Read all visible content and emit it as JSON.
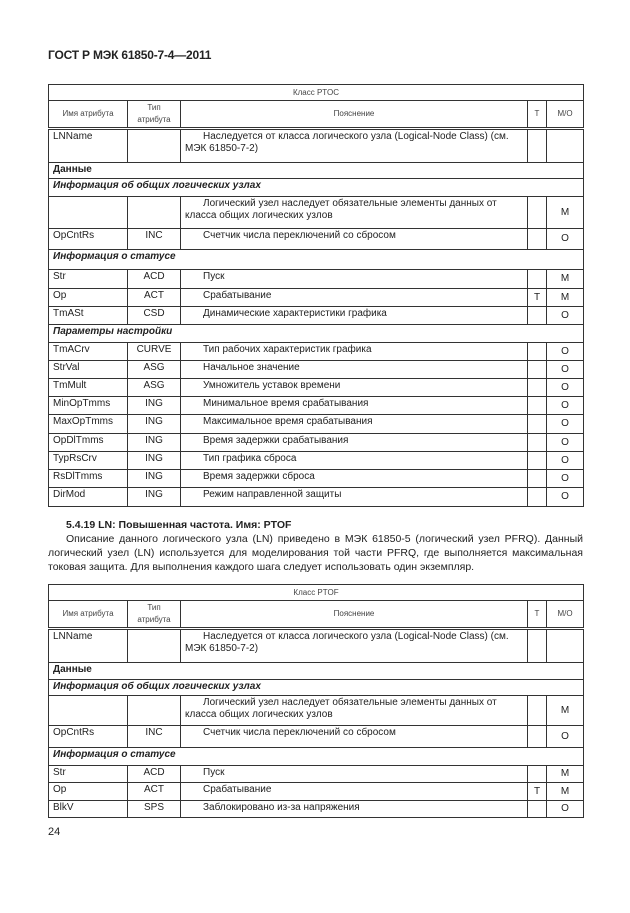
{
  "header": "ГОСТ Р МЭК 61850-7-4—2011",
  "columns": [
    "Имя атрибута",
    "Тип атрибута",
    "Пояснение",
    "Т",
    "М/О"
  ],
  "tables": [
    {
      "class_title": "Класс PTOC",
      "rows": [
        {
          "k": "row",
          "name": "LNName",
          "type": "",
          "desc": "Наследуется от класса логического узла (Logical-Node Class) (см. МЭК 61850-7-2)",
          "t": "",
          "mo": ""
        },
        {
          "k": "sec",
          "text": "Данные"
        },
        {
          "k": "sub",
          "text": "Информация об общих логических узлах"
        },
        {
          "k": "row",
          "name": "",
          "type": "",
          "desc": "Логический узел наследует обязательные элементы данных от класса общих логических узлов",
          "t": "",
          "mo": "M"
        },
        {
          "k": "row",
          "name": "OpCntRs",
          "type": "INC",
          "desc": "Счетчик числа переключений со сбросом",
          "t": "",
          "mo": "O"
        },
        {
          "k": "sub",
          "text": "Информация о статусе"
        },
        {
          "k": "row",
          "name": "Str",
          "type": "ACD",
          "desc": "Пуск",
          "t": "",
          "mo": "M"
        },
        {
          "k": "row",
          "name": "Op",
          "type": "ACT",
          "desc": "Срабатывание",
          "t": "T",
          "mo": "M"
        },
        {
          "k": "row",
          "name": "TmASt",
          "type": "CSD",
          "desc": "Динамические характеристики графика",
          "t": "",
          "mo": "O"
        },
        {
          "k": "sub",
          "text": "Параметры настройки"
        },
        {
          "k": "row",
          "name": "TmACrv",
          "type": "CURVE",
          "desc": "Тип рабочих характеристик графика",
          "t": "",
          "mo": "O"
        },
        {
          "k": "row",
          "name": "StrVal",
          "type": "ASG",
          "desc": "Начальное значение",
          "t": "",
          "mo": "O"
        },
        {
          "k": "row",
          "name": "TmMult",
          "type": "ASG",
          "desc": "Умножитель уставок времени",
          "t": "",
          "mo": "O"
        },
        {
          "k": "row",
          "name": "MinOpTmms",
          "type": "ING",
          "desc": "Минимальное время срабатывания",
          "t": "",
          "mo": "O"
        },
        {
          "k": "row",
          "name": "MaxOpTmms",
          "type": "ING",
          "desc": "Максимальное время срабатывания",
          "t": "",
          "mo": "O"
        },
        {
          "k": "row",
          "name": "OpDlTmms",
          "type": "ING",
          "desc": "Время задержки срабатывания",
          "t": "",
          "mo": "O"
        },
        {
          "k": "row",
          "name": "TypRsCrv",
          "type": "ING",
          "desc": "Тип графика сброса",
          "t": "",
          "mo": "O"
        },
        {
          "k": "row",
          "name": "RsDlTmms",
          "type": "ING",
          "desc": "Время задержки сброса",
          "t": "",
          "mo": "O"
        },
        {
          "k": "row",
          "name": "DirMod",
          "type": "ING",
          "desc": "Режим направленной защиты",
          "t": "",
          "mo": "O"
        }
      ]
    },
    {
      "class_title": "Класс PTOF",
      "rows": [
        {
          "k": "row",
          "name": "LNName",
          "type": "",
          "desc": "Наследуется от класса логического узла (Logical-Node Class) (см. МЭК 61850-7-2)",
          "t": "",
          "mo": ""
        },
        {
          "k": "sec",
          "text": "Данные"
        },
        {
          "k": "sub",
          "text": "Информация об общих логических узлах"
        },
        {
          "k": "row",
          "name": "",
          "type": "",
          "desc": "Логический узел наследует обязательные элементы данных от класса общих логических узлов",
          "t": "",
          "mo": "M"
        },
        {
          "k": "row",
          "name": "OpCntRs",
          "type": "INC",
          "desc": "Счетчик числа переключений со сбросом",
          "t": "",
          "mo": "O"
        },
        {
          "k": "sub",
          "text": "Информация о статусе"
        },
        {
          "k": "row",
          "name": "Str",
          "type": "ACD",
          "desc": "Пуск",
          "t": "",
          "mo": "M"
        },
        {
          "k": "row",
          "name": "Op",
          "type": "ACT",
          "desc": "Срабатывание",
          "t": "T",
          "mo": "M"
        },
        {
          "k": "row",
          "name": "BlkV",
          "type": "SPS",
          "desc": "Заблокировано из-за напряжения",
          "t": "",
          "mo": "O"
        }
      ]
    }
  ],
  "section": {
    "title": "5.4.19 LN: Повышенная частота. Имя: PTOF",
    "paragraph": "Описание данного логического узла (LN) приведено в МЭК 61850-5 (логический узел PFRQ). Данный логический узел (LN) используется для моделирования той части PFRQ, где выполняется максимальная токовая защита. Для выполнения каждого шага следует использовать один экземпляр."
  },
  "page_number": "24"
}
